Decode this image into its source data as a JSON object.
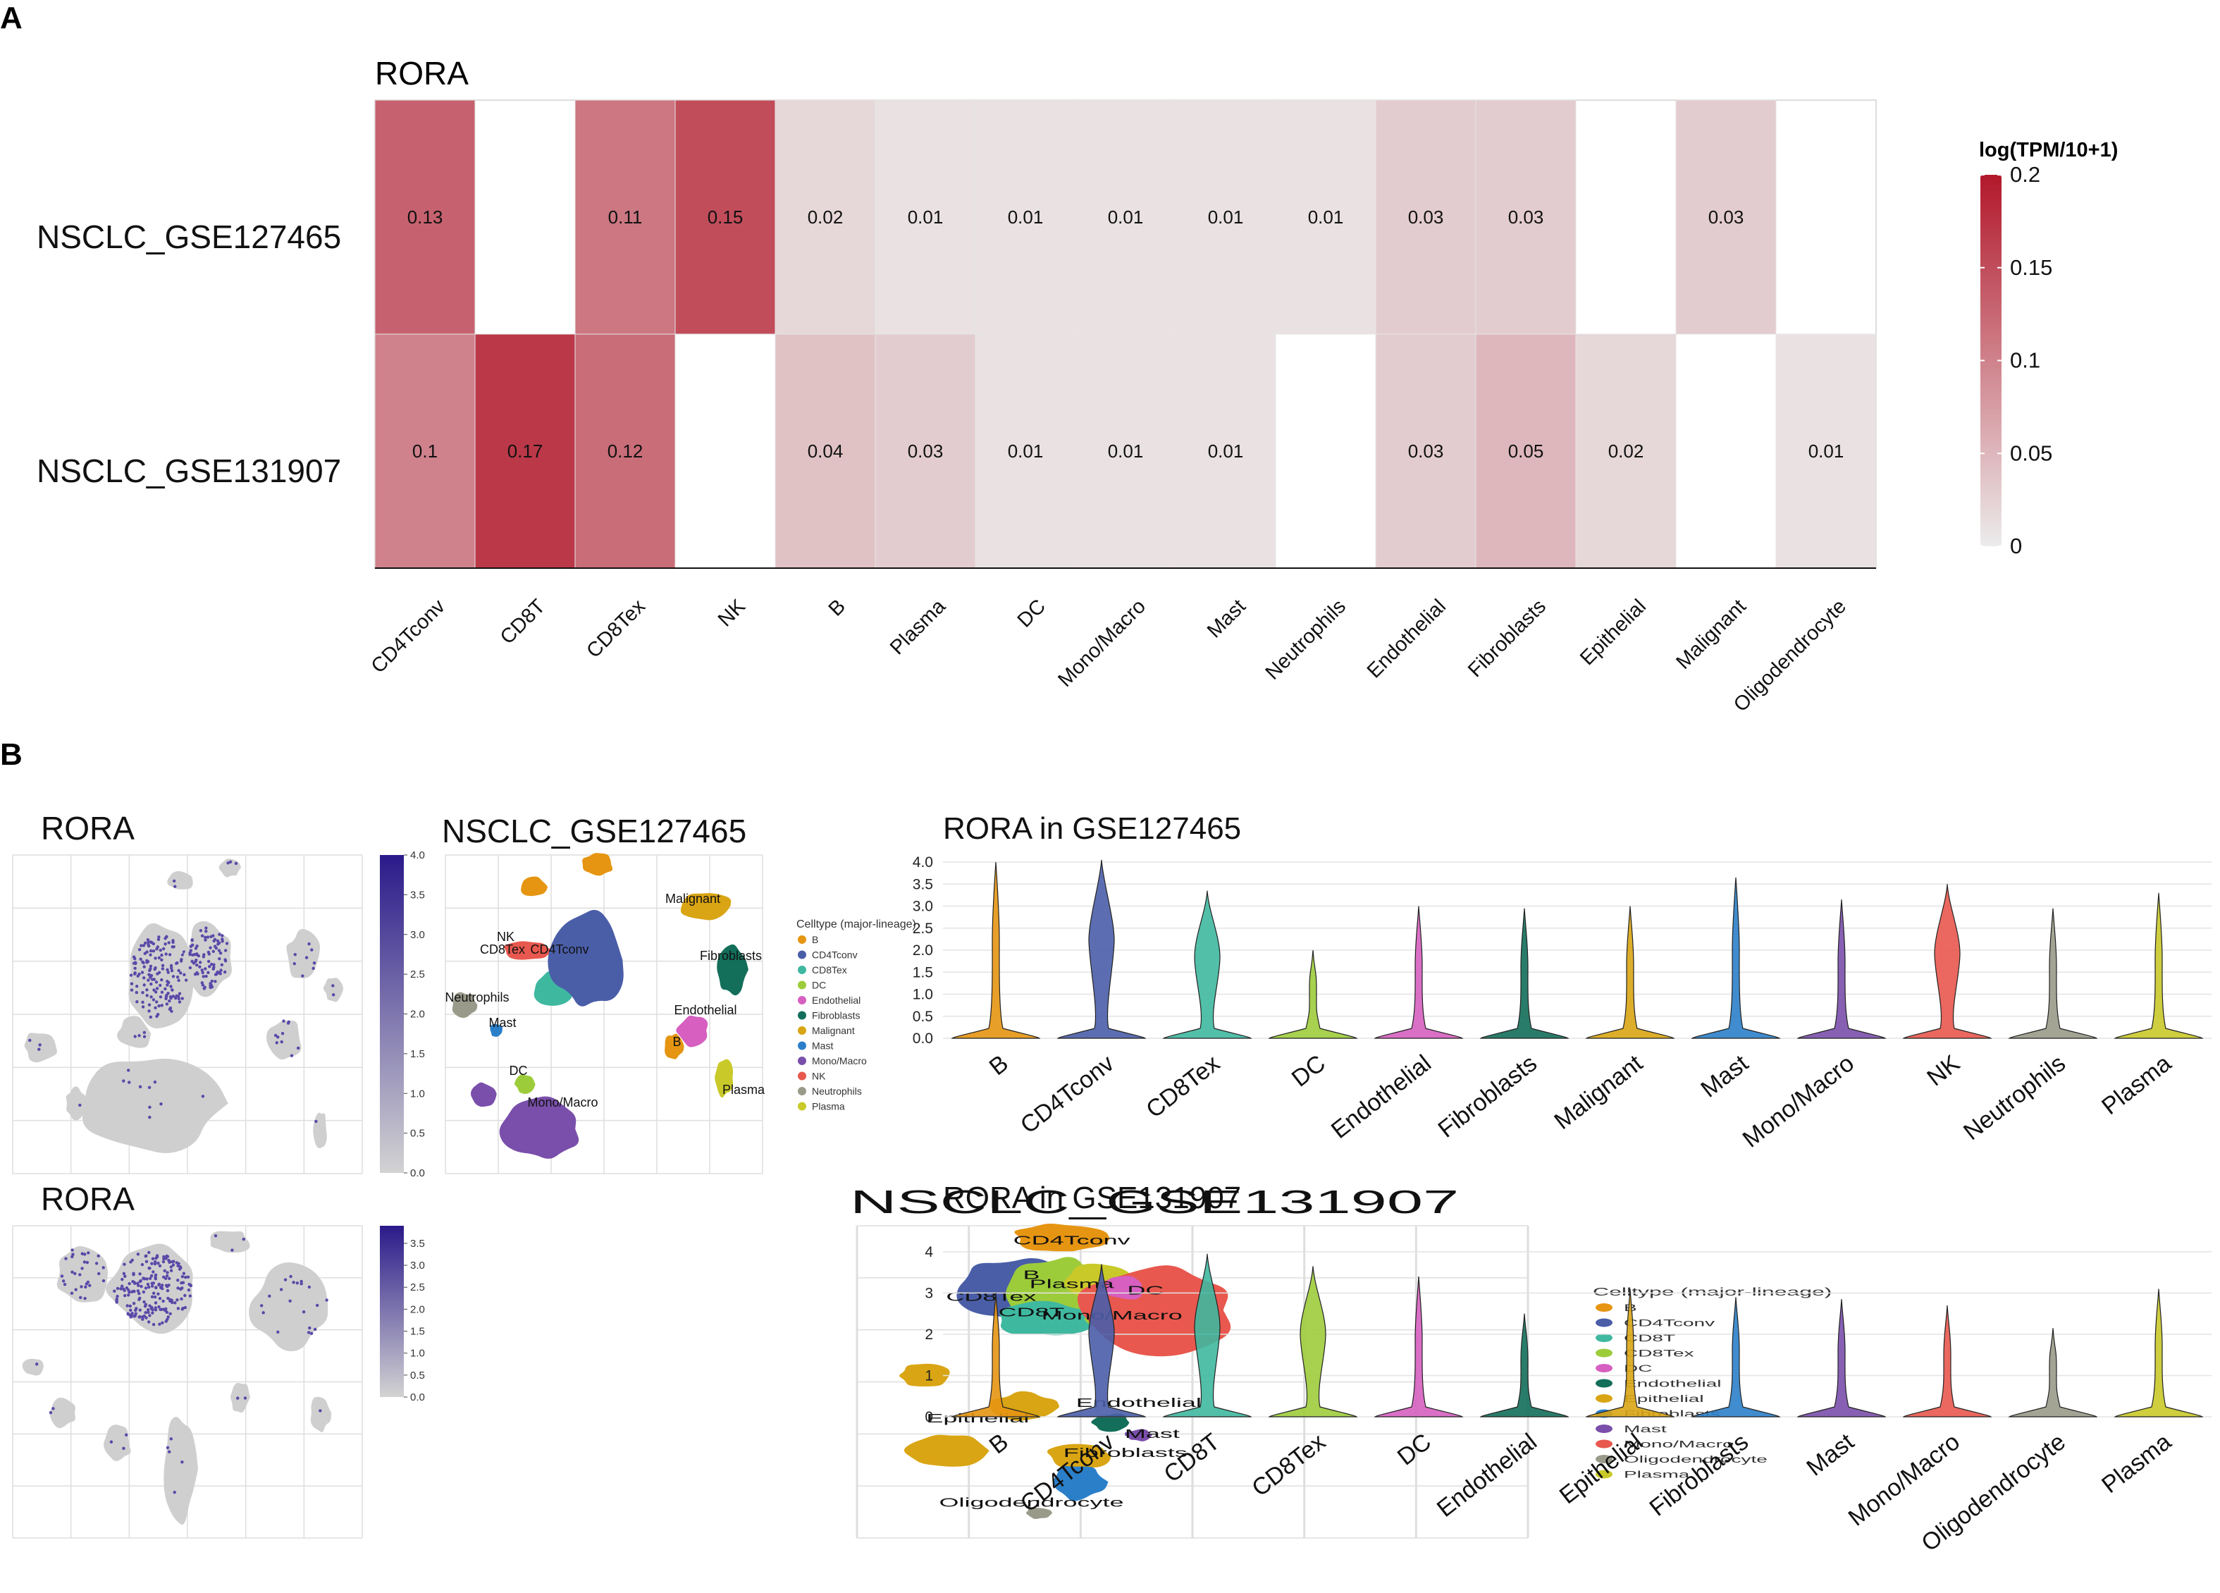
{
  "panel_labels": [
    "A",
    "B"
  ],
  "colors": {
    "heat_low": "#ececec",
    "heat_high": "#b2182b",
    "feature_low": "#d3d3d3",
    "feature_high": "#2a1a8a",
    "grid": "#dedede"
  },
  "chart_data": [
    {
      "type": "heatmap",
      "title": "RORA",
      "rows": [
        "NSCLC_GSE127465",
        "NSCLC_GSE131907"
      ],
      "columns": [
        "CD4Tconv",
        "CD8T",
        "CD8Tex",
        "NK",
        "B",
        "Plasma",
        "DC",
        "Mono/Macro",
        "Mast",
        "Neutrophils",
        "Endothelial",
        "Fibroblasts",
        "Epithelial",
        "Malignant",
        "Oligodendrocyte"
      ],
      "values": [
        [
          0.13,
          null,
          0.11,
          0.15,
          0.02,
          0.01,
          0.01,
          0.01,
          0.01,
          0.01,
          0.03,
          0.03,
          null,
          0.03,
          null
        ],
        [
          0.1,
          0.17,
          0.12,
          null,
          0.04,
          0.03,
          0.01,
          0.01,
          0.01,
          null,
          0.03,
          0.05,
          0.02,
          null,
          0.01
        ]
      ],
      "colorbar": {
        "title": "log(TPM/10+1)",
        "range": [
          0,
          0.2
        ],
        "ticks": [
          "0.2",
          "0.15",
          "0.1",
          "0.05",
          "0"
        ]
      }
    },
    {
      "type": "scatter",
      "subtype": "umap-feature",
      "title": "RORA",
      "dataset": "NSCLC_GSE127465",
      "colorbar_range": [
        0,
        4
      ],
      "colorbar_ticks": [
        "4.0",
        "3.5",
        "3.0",
        "2.5",
        "2.0",
        "1.5",
        "1.0",
        "0.5",
        "0.0"
      ]
    },
    {
      "type": "scatter",
      "subtype": "umap-celltype",
      "title": "NSCLC_GSE127465",
      "legend_title": "Celltype (major-lineage)",
      "legend": [
        {
          "name": "B",
          "color": "#e69512"
        },
        {
          "name": "CD4Tconv",
          "color": "#4a5ea8"
        },
        {
          "name": "CD8Tex",
          "color": "#3fb8a0"
        },
        {
          "name": "DC",
          "color": "#9dcc3b"
        },
        {
          "name": "Endothelial",
          "color": "#d65fc0"
        },
        {
          "name": "Fibroblasts",
          "color": "#136e5a"
        },
        {
          "name": "Malignant",
          "color": "#d9a514"
        },
        {
          "name": "Mast",
          "color": "#2b7fc9"
        },
        {
          "name": "Mono/Macro",
          "color": "#7a4fab"
        },
        {
          "name": "NK",
          "color": "#e8584e"
        },
        {
          "name": "Neutrophils",
          "color": "#9a9a8a"
        },
        {
          "name": "Plasma",
          "color": "#c9c92a"
        }
      ],
      "cluster_labels": [
        "Malignant",
        "NK",
        "CD8Tex",
        "CD4Tconv",
        "Fibroblasts",
        "Neutrophils",
        "Mast",
        "Endothelial",
        "B",
        "DC",
        "Mono/Macro",
        "Plasma"
      ]
    },
    {
      "type": "violin",
      "title": "RORA in GSE127465",
      "categories": [
        "B",
        "CD4Tconv",
        "CD8Tex",
        "DC",
        "Endothelial",
        "Fibroblasts",
        "Malignant",
        "Mast",
        "Mono/Macro",
        "NK",
        "Neutrophils",
        "Plasma"
      ],
      "max_values": [
        4.0,
        4.05,
        3.35,
        2.0,
        3.0,
        2.95,
        3.0,
        3.65,
        3.15,
        3.5,
        2.95,
        3.3
      ],
      "colors": [
        "#e69512",
        "#4a5ea8",
        "#3fb8a0",
        "#9dcc3b",
        "#d65fc0",
        "#136e5a",
        "#d9a514",
        "#2b7fc9",
        "#7a4fab",
        "#e8584e",
        "#9a9a8a",
        "#c9c92a"
      ],
      "ylim": [
        0,
        4.0
      ],
      "yticks": [
        "0.0",
        "0.5",
        "1.0",
        "1.5",
        "2.0",
        "2.5",
        "3.0",
        "3.5",
        "4.0"
      ]
    },
    {
      "type": "scatter",
      "subtype": "umap-feature",
      "title": "RORA",
      "dataset": "NSCLC_GSE131907",
      "colorbar_range": [
        0,
        3.9
      ],
      "colorbar_ticks": [
        "3.5",
        "3.0",
        "2.5",
        "2.0",
        "1.5",
        "1.0",
        "0.5",
        "0.0"
      ]
    },
    {
      "type": "scatter",
      "subtype": "umap-celltype",
      "title": "NSCLC_GSE131907",
      "legend_title": "Celltype (major-lineage)",
      "legend": [
        {
          "name": "B",
          "color": "#e69512"
        },
        {
          "name": "CD4Tconv",
          "color": "#4a5ea8"
        },
        {
          "name": "CD8T",
          "color": "#3fb8a0"
        },
        {
          "name": "CD8Tex",
          "color": "#9dcc3b"
        },
        {
          "name": "DC",
          "color": "#d65fc0"
        },
        {
          "name": "Endothelial",
          "color": "#136e5a"
        },
        {
          "name": "Epithelial",
          "color": "#d9a514"
        },
        {
          "name": "Fibroblasts",
          "color": "#2b7fc9"
        },
        {
          "name": "Mast",
          "color": "#7a4fab"
        },
        {
          "name": "Mono/Macro",
          "color": "#e8584e"
        },
        {
          "name": "Oligodendrocyte",
          "color": "#9a9a8a"
        },
        {
          "name": "Plasma",
          "color": "#c9c92a"
        }
      ],
      "cluster_labels": [
        "B",
        "CD4Tconv",
        "CD8Tex",
        "Plasma",
        "CD8T",
        "DC",
        "Mono/Macro",
        "Epithelial",
        "Endothelial",
        "Mast",
        "Fibroblasts",
        "Oligodendrocyte"
      ]
    },
    {
      "type": "violin",
      "title": "RORA in GSE131907",
      "categories": [
        "B",
        "CD4Tconv",
        "CD8T",
        "CD8Tex",
        "DC",
        "Endothelial",
        "Epithelial",
        "Fibroblasts",
        "Mast",
        "Mono/Macro",
        "Oligodendrocyte",
        "Plasma"
      ],
      "max_values": [
        3.0,
        3.7,
        3.95,
        3.65,
        3.4,
        2.5,
        3.1,
        2.9,
        2.85,
        2.7,
        2.15,
        3.1
      ],
      "colors": [
        "#e69512",
        "#4a5ea8",
        "#3fb8a0",
        "#9dcc3b",
        "#d65fc0",
        "#136e5a",
        "#d9a514",
        "#2b7fc9",
        "#7a4fab",
        "#e8584e",
        "#9a9a8a",
        "#c9c92a"
      ],
      "ylim": [
        0,
        4.1
      ],
      "yticks": [
        "0",
        "1",
        "2",
        "3",
        "4"
      ]
    }
  ]
}
